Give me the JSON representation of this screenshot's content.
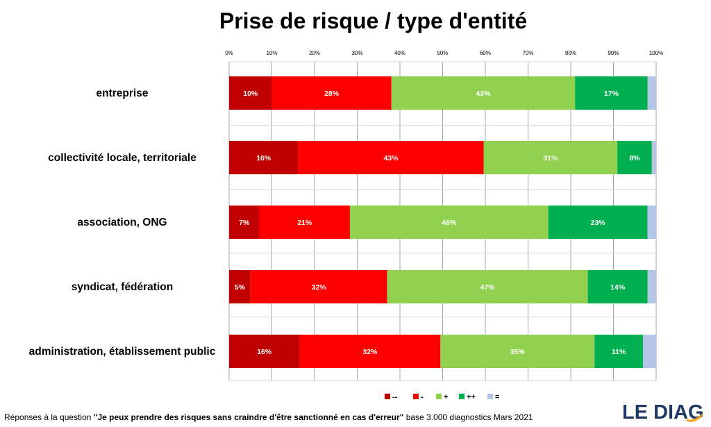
{
  "chart_data": {
    "type": "bar",
    "orientation": "horizontal",
    "stacked": true,
    "percent_stacked": true,
    "title": "Prise de risque / type d'entité",
    "categories": [
      "entreprise",
      "collectivité locale, territoriale",
      "association, ONG",
      "syndicat, fédération",
      "administration, établissement public"
    ],
    "series": [
      {
        "name": "--",
        "color": "#c00000",
        "values": [
          10,
          16,
          7,
          5,
          16
        ]
      },
      {
        "name": "-",
        "color": "#ff0000",
        "values": [
          28,
          43,
          21,
          32,
          32
        ]
      },
      {
        "name": "+",
        "color": "#92d050",
        "values": [
          43,
          31,
          46,
          47,
          35
        ]
      },
      {
        "name": "++",
        "color": "#00b050",
        "values": [
          17,
          8,
          23,
          14,
          11
        ]
      },
      {
        "name": "=",
        "color": "#b4c6e7",
        "values": [
          2,
          1,
          2,
          2,
          3
        ]
      }
    ],
    "data_labels": {
      "--": [
        "10%",
        "16%",
        "7%",
        "5%",
        "16%"
      ],
      "-": [
        "28%",
        "43%",
        "21%",
        "32%",
        "32%"
      ],
      "+": [
        "43%",
        "31%",
        "46%",
        "47%",
        "35%"
      ],
      "++": [
        "17%",
        "8%",
        "23%",
        "14%",
        "11%"
      ],
      "=": [
        "",
        "",
        "",
        "",
        ""
      ]
    },
    "x_ticks": [
      "0%",
      "10%",
      "20%",
      "30%",
      "40%",
      "50%",
      "60%",
      "70%",
      "80%",
      "90%",
      "100%"
    ],
    "xlim": [
      0,
      100
    ],
    "x_axis_position": "top",
    "grid": true,
    "legend_position": "bottom"
  },
  "footer": {
    "prefix": "Réponses à la question ",
    "question": "\"Je peux prendre des risques sans craindre d'être sanctionné en cas d'erreur\"",
    "suffix": " base 3.000 diagnostics Mars 2021"
  },
  "logo": {
    "text": "LE DIAG",
    "color": "#1f3864",
    "accent": "#f5a623"
  }
}
